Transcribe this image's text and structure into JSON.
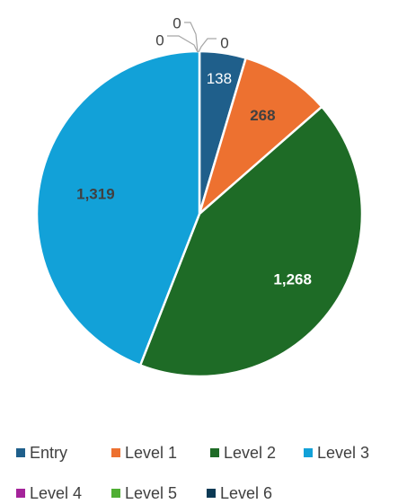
{
  "chart_data": {
    "type": "pie",
    "title": "",
    "categories": [
      "Entry",
      "Level 1",
      "Level 2",
      "Level 3",
      "Level 4",
      "Level 5",
      "Level 6"
    ],
    "values": [
      138,
      268,
      1268,
      1319,
      0,
      0,
      0
    ],
    "data_labels": [
      "138",
      "268",
      "1,268",
      "1,319",
      "0",
      "0",
      "0"
    ],
    "colors": [
      "#1f5f8b",
      "#ed7130",
      "#1e6b26",
      "#12a1d8",
      "#a4239a",
      "#4fae33",
      "#0c3a55"
    ],
    "legend": {
      "position": "bottom",
      "entries": [
        "Entry",
        "Level 1",
        "Level 2",
        "Level 3",
        "Level 4",
        "Level 5",
        "Level 6"
      ]
    },
    "start_angle": "12 o'clock",
    "direction": "clockwise"
  }
}
